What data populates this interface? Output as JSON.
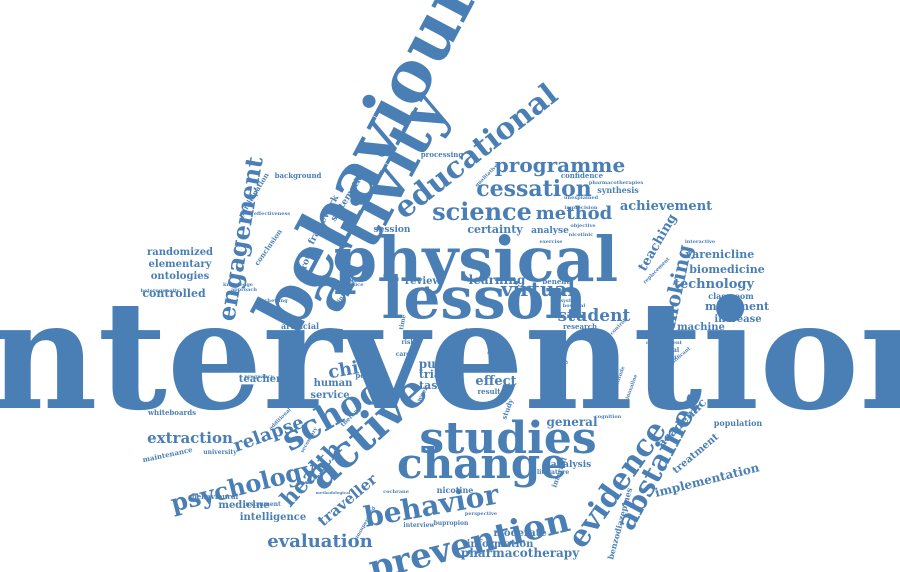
{
  "colors": {
    "word": "#4a7fb5",
    "background": "#ffffff"
  },
  "words": [
    "intervention",
    "behaviour",
    "activity",
    "physical",
    "lesson",
    "studies",
    "change",
    "active",
    "prevention",
    "school",
    "behavior",
    "evidence",
    "educational",
    "abstainer",
    "engagement",
    "psychology",
    "health",
    "science",
    "programme",
    "cessation",
    "smoking",
    "virtual",
    "evaluation",
    "relapse",
    "method",
    "student",
    "child",
    "traveller",
    "extraction",
    "achievement",
    "teaching",
    "technology",
    "pharmacotherapy",
    "implementation",
    "effect",
    "pupil",
    "learning",
    "general",
    "certainty",
    "academic",
    "varenicline",
    "biomedicine",
    "movement",
    "increase",
    "machine",
    "controlled",
    "randomized",
    "elementary",
    "ontologies",
    "medicine",
    "intelligence",
    "information",
    "moderate",
    "trial",
    "task",
    "review",
    "human",
    "service",
    "teacher",
    "treatment",
    "population",
    "primary",
    "field",
    "analysis",
    "analyse",
    "benzodiazepines",
    "nicotine",
    "session",
    "systematic",
    "framework",
    "group",
    "classroom",
    "artificial",
    "participation",
    "background",
    "confidence",
    "synthesis",
    "processing",
    "research",
    "benefit",
    "policy",
    "whiteboards",
    "maintenance",
    "behavioural",
    "instrument",
    "university",
    "internal",
    "literature",
    "interview",
    "bupropion",
    "result",
    "study",
    "conclusion",
    "knowledge",
    "heterogeneity",
    "approach",
    "chewing",
    "effectiveness",
    "interactive",
    "pharmacotherapies",
    "language",
    "potential",
    "development",
    "weekend",
    "significant",
    "cognition",
    "unexplained",
    "imprecision",
    "objective",
    "exercise",
    "nicotinic",
    "qualitative",
    "replacement",
    "attitude",
    "quinoxaline",
    "cochrane",
    "english",
    "care",
    "risk",
    "unsupervised",
    "additional",
    "secondary",
    "therapy",
    "pregnancy",
    "methodological",
    "time",
    "trip",
    "project",
    "week",
    "hospital",
    "system",
    "interest",
    "practice",
    "control",
    "perspective"
  ]
}
